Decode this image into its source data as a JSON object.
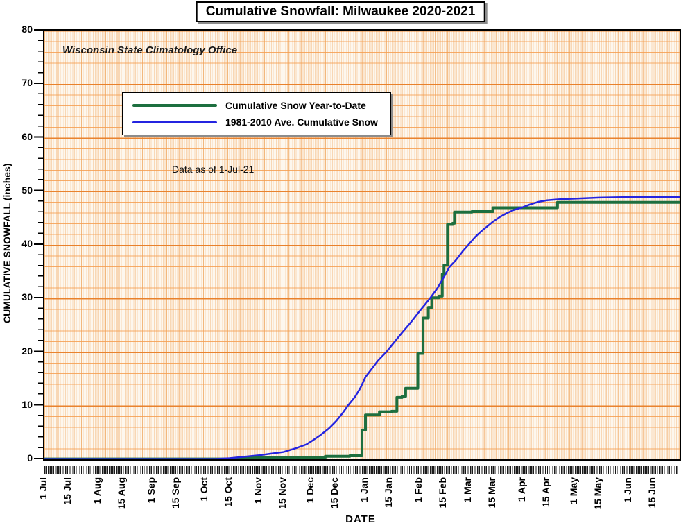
{
  "title": "Cumulative Snowfall: Milwaukee 2020-2021",
  "annotations": {
    "office": "Wisconsin State Climatology Office",
    "data_as_of": "Data as of 1-Jul-21"
  },
  "axes": {
    "y_label": "CUMULATIVE SNOWFALL (inches)",
    "x_label": "DATE",
    "y_ticks": [
      0,
      10,
      20,
      30,
      40,
      50,
      60,
      70,
      80
    ],
    "y_minor_step_inches": 2,
    "x_tick_labels": [
      {
        "label": "1 Jul",
        "day": 0
      },
      {
        "label": "15 Jul",
        "day": 14
      },
      {
        "label": "1 Aug",
        "day": 31
      },
      {
        "label": "15 Aug",
        "day": 45
      },
      {
        "label": "1 Sep",
        "day": 62
      },
      {
        "label": "15 Sep",
        "day": 76
      },
      {
        "label": "1 Oct",
        "day": 92
      },
      {
        "label": "15 Oct",
        "day": 106
      },
      {
        "label": "1 Nov",
        "day": 123
      },
      {
        "label": "15 Nov",
        "day": 137
      },
      {
        "label": "1 Dec",
        "day": 153
      },
      {
        "label": "15 Dec",
        "day": 167
      },
      {
        "label": "1 Jan",
        "day": 184
      },
      {
        "label": "15 Jan",
        "day": 198
      },
      {
        "label": "1 Feb",
        "day": 215
      },
      {
        "label": "15 Feb",
        "day": 229
      },
      {
        "label": "1 Mar",
        "day": 243
      },
      {
        "label": "15 Mar",
        "day": 257
      },
      {
        "label": "1 Apr",
        "day": 274
      },
      {
        "label": "15 Apr",
        "day": 288
      },
      {
        "label": "1 May",
        "day": 304
      },
      {
        "label": "15 May",
        "day": 318
      },
      {
        "label": "1 Jun",
        "day": 335
      },
      {
        "label": "15 Jun",
        "day": 349
      }
    ]
  },
  "legend": {
    "items": [
      {
        "label": "Cumulative Snow Year-to-Date",
        "color": "#1d6f3f"
      },
      {
        "label": "1981-2010 Ave. Cumulative Snow",
        "color": "#2424e0"
      }
    ]
  },
  "colors": {
    "grid_minor_horizontal": "#f59e50",
    "grid_major_horizontal": "#e87f28",
    "grid_vertical": "#f3b06e",
    "plot_background": "#fdf7ee",
    "series_ytd": "#1d6f3f",
    "series_avg": "#2424e0"
  },
  "chart_data": {
    "type": "line",
    "title": "Cumulative Snowfall: Milwaukee 2020-2021",
    "xlabel": "DATE",
    "ylabel": "CUMULATIVE SNOWFALL (inches)",
    "ylim": [
      0,
      80
    ],
    "x_unit": "days since 1 Jul 2020 (0 = 1 Jul, 364 = 30 Jun)",
    "x_range_days": [
      0,
      364
    ],
    "grid": "orange minor grid: horizontal every 2 inches (major every 10), vertical daily",
    "legend_position": "inside upper-left",
    "series": [
      {
        "name": "Cumulative Snow Year-to-Date",
        "color": "#1d6f3f",
        "style": "step",
        "stroke_width": 4,
        "points": [
          [
            0,
            0
          ],
          [
            114,
            0.3
          ],
          [
            161,
            0.5
          ],
          [
            175,
            0.6
          ],
          [
            182,
            5.4
          ],
          [
            184,
            8.2
          ],
          [
            192,
            8.8
          ],
          [
            199,
            8.9
          ],
          [
            202,
            11.5
          ],
          [
            205,
            11.7
          ],
          [
            207,
            13.2
          ],
          [
            214,
            19.7
          ],
          [
            217,
            26.3
          ],
          [
            220,
            28.3
          ],
          [
            222,
            30.1
          ],
          [
            226,
            30.4
          ],
          [
            228,
            34.5
          ],
          [
            229,
            36.2
          ],
          [
            231,
            43.8
          ],
          [
            234,
            44.0
          ],
          [
            235,
            46.1
          ],
          [
            245,
            46.2
          ],
          [
            257,
            46.9
          ],
          [
            294,
            47.9
          ],
          [
            364,
            47.9
          ]
        ]
      },
      {
        "name": "1981-2010 Ave. Cumulative Snow",
        "color": "#2424e0",
        "style": "linear",
        "stroke_width": 2.5,
        "points": [
          [
            0,
            0
          ],
          [
            98,
            0
          ],
          [
            106,
            0.15
          ],
          [
            114,
            0.4
          ],
          [
            123,
            0.7
          ],
          [
            130,
            1.0
          ],
          [
            137,
            1.3
          ],
          [
            144,
            2.0
          ],
          [
            150,
            2.7
          ],
          [
            153,
            3.3
          ],
          [
            158,
            4.4
          ],
          [
            163,
            5.7
          ],
          [
            167,
            7.0
          ],
          [
            171,
            8.6
          ],
          [
            174,
            10.0
          ],
          [
            178,
            11.6
          ],
          [
            181,
            13.2
          ],
          [
            184,
            15.3
          ],
          [
            188,
            17.0
          ],
          [
            191,
            18.3
          ],
          [
            196,
            20.0
          ],
          [
            200,
            21.6
          ],
          [
            205,
            23.6
          ],
          [
            210,
            25.5
          ],
          [
            215,
            27.6
          ],
          [
            221,
            30.0
          ],
          [
            225,
            31.8
          ],
          [
            229,
            34.0
          ],
          [
            232,
            35.8
          ],
          [
            236,
            37.2
          ],
          [
            240,
            38.9
          ],
          [
            243,
            40.0
          ],
          [
            247,
            41.5
          ],
          [
            251,
            42.7
          ],
          [
            254,
            43.5
          ],
          [
            257,
            44.3
          ],
          [
            261,
            45.2
          ],
          [
            265,
            45.9
          ],
          [
            269,
            46.5
          ],
          [
            274,
            47.0
          ],
          [
            278,
            47.5
          ],
          [
            283,
            48.0
          ],
          [
            288,
            48.3
          ],
          [
            296,
            48.5
          ],
          [
            304,
            48.6
          ],
          [
            318,
            48.8
          ],
          [
            335,
            48.9
          ],
          [
            364,
            48.9
          ]
        ]
      }
    ]
  }
}
